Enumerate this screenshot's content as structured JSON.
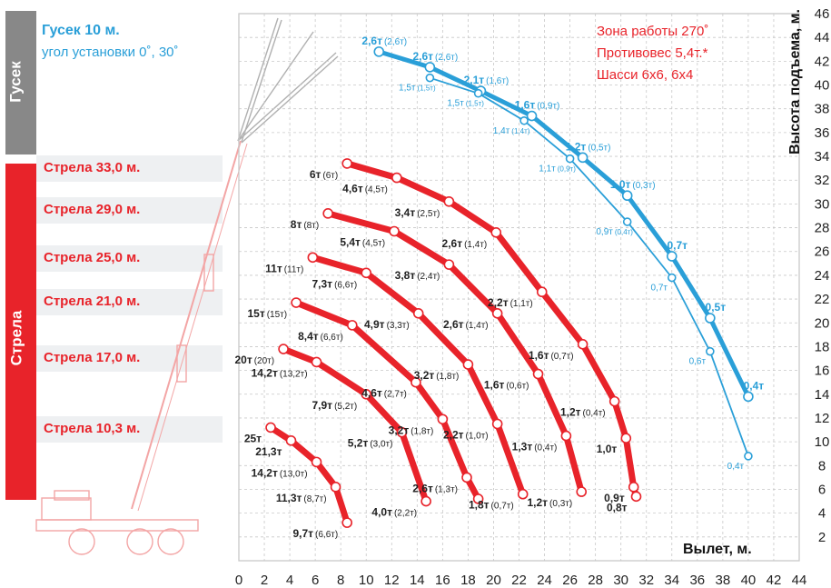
{
  "jib": {
    "section_label": "Гусек",
    "title": "Гусек 10 м.",
    "subtitle": "угол установки 0˚, 30˚"
  },
  "boom": {
    "section_label": "Стрела",
    "lengths": [
      "Стрела 33,0 м.",
      "Стрела 29,0 м.",
      "Стрела 25,0 м.",
      "Стрела 21,0 м.",
      "Стрела 17,0 м.",
      "Стрела 10,3 м."
    ]
  },
  "info": {
    "line1": "Зона работы 270˚",
    "line2": "Противовес 5,4т.*",
    "line3": "Шасси 6х6, 6х4"
  },
  "colors": {
    "boom": "#e8232a",
    "jib": "#2a9fd8",
    "grid": "#c8c8c8",
    "text": "#222222"
  },
  "chart_data": {
    "type": "line",
    "xlabel": "Вылет, м.",
    "ylabel": "Высота подъема, м.",
    "xlim": [
      0,
      44
    ],
    "ylim": [
      0,
      46
    ],
    "x_ticks": [
      "0",
      "2",
      "4",
      "6",
      "8",
      "10",
      "12",
      "14",
      "16",
      "18",
      "20",
      "22",
      "24",
      "26",
      "28",
      "30",
      "32",
      "34",
      "36",
      "38",
      "40",
      "42",
      "44"
    ],
    "y_ticks": [
      "2",
      "4",
      "6",
      "8",
      "10",
      "12",
      "14",
      "16",
      "18",
      "20",
      "22",
      "24",
      "26",
      "28",
      "30",
      "32",
      "34",
      "36",
      "38",
      "40",
      "42",
      "44",
      "46"
    ],
    "series": [
      {
        "name": "Стрела 10,3 м.",
        "kind": "boom",
        "points": [
          {
            "x": 2.5,
            "y": 11.2,
            "label": "25т",
            "sub": ""
          },
          {
            "x": 4.1,
            "y": 10.1,
            "label": "21,3т",
            "sub": ""
          },
          {
            "x": 6.1,
            "y": 8.3,
            "label": "14,2т",
            "sub": "(13,0т)"
          },
          {
            "x": 7.6,
            "y": 6.2,
            "label": "11,3т",
            "sub": "(8,7т)"
          },
          {
            "x": 8.5,
            "y": 3.2,
            "label": "9,7т",
            "sub": "(6,6т)"
          }
        ]
      },
      {
        "name": "Стрела 17,0 м.",
        "kind": "boom",
        "points": [
          {
            "x": 3.5,
            "y": 17.8,
            "label": "20т",
            "sub": "(20т)"
          },
          {
            "x": 6.1,
            "y": 16.7,
            "label": "14,2т",
            "sub": "(13,2т)"
          },
          {
            "x": 10.0,
            "y": 14.0,
            "label": "7,9т",
            "sub": "(5,2т)"
          },
          {
            "x": 12.8,
            "y": 10.8,
            "label": "5,2т",
            "sub": "(3,0т)"
          },
          {
            "x": 14.7,
            "y": 5.0,
            "label": "4,0т",
            "sub": "(2,2т)"
          }
        ]
      },
      {
        "name": "Стрела 21,0 м.",
        "kind": "boom",
        "points": [
          {
            "x": 4.5,
            "y": 21.7,
            "label": "15т",
            "sub": "(15т)"
          },
          {
            "x": 8.9,
            "y": 19.8,
            "label": "8,4т",
            "sub": "(6,6т)"
          },
          {
            "x": 13.9,
            "y": 15.0,
            "label": "4,6т",
            "sub": "(2,7т)"
          },
          {
            "x": 16.0,
            "y": 11.9,
            "label": "3,2т",
            "sub": "(1,8т)"
          },
          {
            "x": 17.9,
            "y": 7.0,
            "label": "2,6т",
            "sub": "(1,3т)"
          },
          {
            "x": 18.8,
            "y": 5.2,
            "label": "",
            "sub": ""
          }
        ]
      },
      {
        "name": "Стрела 25,0 м.",
        "kind": "boom",
        "points": [
          {
            "x": 5.8,
            "y": 25.5,
            "label": "11т",
            "sub": "(11т)"
          },
          {
            "x": 10.0,
            "y": 24.2,
            "label": "7,3т",
            "sub": "(6,6т)"
          },
          {
            "x": 14.1,
            "y": 20.8,
            "label": "4,9т",
            "sub": "(3,3т)"
          },
          {
            "x": 18.0,
            "y": 16.5,
            "label": "3,2т",
            "sub": "(1,8т)"
          },
          {
            "x": 20.3,
            "y": 11.5,
            "label": "2,2т",
            "sub": "(1,0т)"
          },
          {
            "x": 22.3,
            "y": 5.6,
            "label": "1,8т",
            "sub": "(0,7т)"
          }
        ]
      },
      {
        "name": "Стрела 29,0 м.",
        "kind": "boom",
        "points": [
          {
            "x": 7.0,
            "y": 29.2,
            "label": "8т",
            "sub": "(8т)"
          },
          {
            "x": 12.2,
            "y": 27.7,
            "label": "5,4т",
            "sub": "(4,5т)"
          },
          {
            "x": 16.5,
            "y": 24.9,
            "label": "3,8т",
            "sub": "(2,4т)"
          },
          {
            "x": 20.3,
            "y": 20.8,
            "label": "2,6т",
            "sub": "(1,4т)"
          },
          {
            "x": 23.5,
            "y": 15.7,
            "label": "1,6т",
            "sub": "(0,6т)"
          },
          {
            "x": 25.7,
            "y": 10.5,
            "label": "1,3т",
            "sub": "(0,4т)"
          },
          {
            "x": 26.9,
            "y": 5.8,
            "label": "1,2т",
            "sub": "(0,3т)"
          }
        ]
      },
      {
        "name": "Стрела 33,0 м.",
        "kind": "boom",
        "points": [
          {
            "x": 8.5,
            "y": 33.4,
            "label": "6т",
            "sub": "(6т)"
          },
          {
            "x": 12.4,
            "y": 32.2,
            "label": "4,6т",
            "sub": "(4,5т)"
          },
          {
            "x": 16.5,
            "y": 30.2,
            "label": "3,4т",
            "sub": "(2,5т)"
          },
          {
            "x": 20.2,
            "y": 27.6,
            "label": "2,6т",
            "sub": "(1,4т)"
          },
          {
            "x": 23.8,
            "y": 22.6,
            "label": "2,2т",
            "sub": "(1,1т)"
          },
          {
            "x": 27.0,
            "y": 18.2,
            "label": "1,6т",
            "sub": "(0,7т)"
          },
          {
            "x": 29.5,
            "y": 13.4,
            "label": "1,2т",
            "sub": "(0,4т)"
          },
          {
            "x": 30.4,
            "y": 10.3,
            "label": "1,0т",
            "sub": ""
          },
          {
            "x": 31.0,
            "y": 6.2,
            "label": "0,9т",
            "sub": ""
          },
          {
            "x": 31.2,
            "y": 5.4,
            "label": "0,8т",
            "sub": ""
          }
        ]
      },
      {
        "name": "Гусек 10 м. 0˚",
        "kind": "jib",
        "points": [
          {
            "x": 11.0,
            "y": 42.8,
            "label": "2,6т",
            "sub": "(2,6т)"
          },
          {
            "x": 15.0,
            "y": 41.5,
            "label": "2,6т",
            "sub": "(2,6т)"
          },
          {
            "x": 19.0,
            "y": 39.5,
            "label": "2,1т",
            "sub": "(1,6т)"
          },
          {
            "x": 23.0,
            "y": 37.4,
            "label": "1,6т",
            "sub": "(0,9т)"
          },
          {
            "x": 27.0,
            "y": 33.9,
            "label": "1,2т",
            "sub": "(0,5т)"
          },
          {
            "x": 30.5,
            "y": 30.7,
            "label": "1,0т",
            "sub": "(0,3т)"
          },
          {
            "x": 34.0,
            "y": 25.6,
            "label": "0,7т",
            "sub": ""
          },
          {
            "x": 37.0,
            "y": 20.4,
            "label": "0,5т",
            "sub": ""
          },
          {
            "x": 40.0,
            "y": 13.8,
            "label": "0,4т",
            "sub": ""
          }
        ]
      },
      {
        "name": "Гусек 10 м. 30˚",
        "kind": "jib-thin",
        "points": [
          {
            "x": 15.0,
            "y": 40.6,
            "label": "1,5т",
            "sub": "(1,5т)"
          },
          {
            "x": 18.8,
            "y": 39.3,
            "label": "1,5т",
            "sub": "(1,5т)"
          },
          {
            "x": 22.4,
            "y": 37.0,
            "label": "1,4т",
            "sub": "(1,4т)"
          },
          {
            "x": 26.0,
            "y": 33.8,
            "label": "1,1т",
            "sub": "(0,9т)"
          },
          {
            "x": 30.5,
            "y": 28.5,
            "label": "0,9т",
            "sub": "(0,4т)"
          },
          {
            "x": 34.0,
            "y": 23.8,
            "label": "0,7т",
            "sub": ""
          },
          {
            "x": 37.0,
            "y": 17.6,
            "label": "0,6т",
            "sub": ""
          },
          {
            "x": 40.0,
            "y": 8.8,
            "label": "0,4т",
            "sub": ""
          }
        ]
      }
    ]
  }
}
